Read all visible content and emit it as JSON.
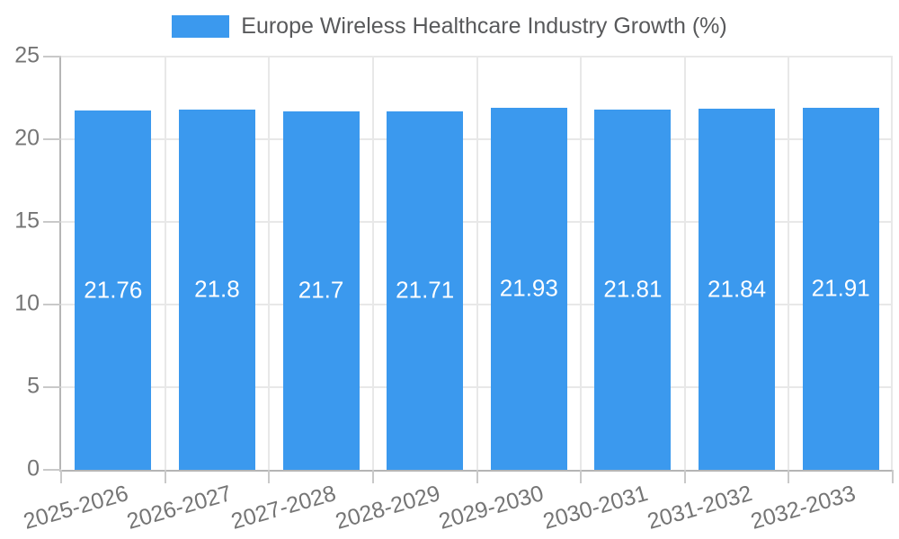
{
  "chart_data": {
    "type": "bar",
    "title": "Europe Wireless Healthcare Industry Growth (%)",
    "legend": {
      "label": "Europe Wireless Healthcare Industry Growth (%)",
      "position": "top"
    },
    "categories": [
      "2025-2026",
      "2026-2027",
      "2027-2028",
      "2028-2029",
      "2029-2030",
      "2030-2031",
      "2031-2032",
      "2032-2033"
    ],
    "values": [
      21.76,
      21.8,
      21.7,
      21.71,
      21.93,
      21.81,
      21.84,
      21.91
    ],
    "xlabel": "",
    "ylabel": "",
    "ylim": [
      0,
      25
    ],
    "yticks": [
      0,
      5,
      10,
      15,
      20,
      25
    ],
    "grid": true,
    "bar_labels_shown": true,
    "colors": {
      "bar": "#3B99EE",
      "grid": "#E8E8E8",
      "axis": "#B5B5B5",
      "tick": "#C9C9C9",
      "tick_text": "#757575",
      "legend_text": "#58595B",
      "bar_label_text": "#FFFFFF",
      "background": "#FFFFFF"
    }
  }
}
